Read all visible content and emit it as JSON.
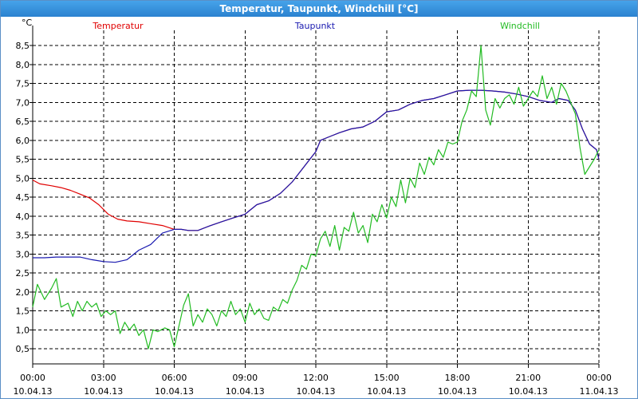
{
  "window": {
    "title": "Temperatur, Taupunkt, Windchill [°C]"
  },
  "chart_data": {
    "type": "line",
    "title": "Temperatur, Taupunkt, Windchill [°C]",
    "ylabel": "°C",
    "ylim": [
      0.1,
      8.9
    ],
    "xlim": [
      0,
      24
    ],
    "grid": true,
    "legend_position": "top",
    "y_ticks": [
      0.5,
      1.0,
      1.5,
      2.0,
      2.5,
      3.0,
      3.5,
      4.0,
      4.5,
      5.0,
      5.5,
      6.0,
      6.5,
      7.0,
      7.5,
      8.0,
      8.5
    ],
    "y_tick_labels": [
      "0,5",
      "1,0",
      "1,5",
      "2,0",
      "2,5",
      "3,0",
      "3,5",
      "4,0",
      "4,5",
      "5,0",
      "5,5",
      "6,0",
      "6,5",
      "7,0",
      "7,5",
      "8,0",
      "8,5"
    ],
    "x_ticks": [
      {
        "x": 0,
        "time": "00:00",
        "date": "10.04.13"
      },
      {
        "x": 3,
        "time": "03:00",
        "date": "10.04.13"
      },
      {
        "x": 6,
        "time": "06:00",
        "date": "10.04.13"
      },
      {
        "x": 9,
        "time": "09:00",
        "date": "10.04.13"
      },
      {
        "x": 12,
        "time": "12:00",
        "date": "10.04.13"
      },
      {
        "x": 15,
        "time": "15:00",
        "date": "10.04.13"
      },
      {
        "x": 18,
        "time": "18:00",
        "date": "10.04.13"
      },
      {
        "x": 21,
        "time": "21:00",
        "date": "10.04.13"
      },
      {
        "x": 24,
        "time": "00:00",
        "date": "11.04.13"
      }
    ],
    "series": [
      {
        "name": "Temperatur",
        "color": "#e00000",
        "points": [
          [
            0,
            4.95
          ],
          [
            0.3,
            4.85
          ],
          [
            0.8,
            4.8
          ],
          [
            1.2,
            4.75
          ],
          [
            1.6,
            4.68
          ],
          [
            2.0,
            4.58
          ],
          [
            2.4,
            4.48
          ],
          [
            2.8,
            4.3
          ],
          [
            3.2,
            4.05
          ],
          [
            3.6,
            3.92
          ],
          [
            4.0,
            3.87
          ],
          [
            4.5,
            3.85
          ],
          [
            5.0,
            3.8
          ],
          [
            5.5,
            3.75
          ],
          [
            6.0,
            3.65
          ],
          [
            6.3,
            3.65
          ],
          [
            6.6,
            3.62
          ],
          [
            7.0,
            3.62
          ],
          [
            7.5,
            3.74
          ],
          [
            8.0,
            3.85
          ],
          [
            8.5,
            3.95
          ],
          [
            9.0,
            4.05
          ],
          [
            9.5,
            4.3
          ],
          [
            10.0,
            4.4
          ],
          [
            10.5,
            4.6
          ],
          [
            11.0,
            4.9
          ],
          [
            11.5,
            5.3
          ],
          [
            12.0,
            5.7
          ],
          [
            12.2,
            6.0
          ],
          [
            12.6,
            6.1
          ],
          [
            13.0,
            6.2
          ],
          [
            13.5,
            6.3
          ],
          [
            14.0,
            6.35
          ],
          [
            14.5,
            6.5
          ],
          [
            15.0,
            6.75
          ],
          [
            15.5,
            6.8
          ],
          [
            16.0,
            6.95
          ],
          [
            16.5,
            7.05
          ],
          [
            17.0,
            7.1
          ],
          [
            17.5,
            7.2
          ],
          [
            18.0,
            7.3
          ],
          [
            18.5,
            7.32
          ],
          [
            19.0,
            7.32
          ],
          [
            19.5,
            7.3
          ],
          [
            20.0,
            7.27
          ],
          [
            20.5,
            7.22
          ],
          [
            21.0,
            7.15
          ],
          [
            21.5,
            7.05
          ],
          [
            22.0,
            7.0
          ],
          [
            22.3,
            7.1
          ],
          [
            22.7,
            7.05
          ],
          [
            23.0,
            6.8
          ],
          [
            23.3,
            6.3
          ],
          [
            23.6,
            5.9
          ],
          [
            23.9,
            5.75
          ],
          [
            24.0,
            5.5
          ]
        ]
      },
      {
        "name": "Taupunkt",
        "color": "#1a1ab0",
        "points": [
          [
            0,
            2.9
          ],
          [
            0.5,
            2.9
          ],
          [
            1.0,
            2.92
          ],
          [
            1.5,
            2.92
          ],
          [
            2.0,
            2.92
          ],
          [
            2.5,
            2.85
          ],
          [
            3.0,
            2.8
          ],
          [
            3.5,
            2.78
          ],
          [
            4.0,
            2.85
          ],
          [
            4.5,
            3.1
          ],
          [
            5.0,
            3.25
          ],
          [
            5.5,
            3.55
          ],
          [
            6.0,
            3.65
          ],
          [
            6.3,
            3.65
          ],
          [
            6.6,
            3.62
          ],
          [
            7.0,
            3.62
          ],
          [
            7.5,
            3.74
          ],
          [
            8.0,
            3.85
          ],
          [
            8.5,
            3.95
          ],
          [
            9.0,
            4.05
          ],
          [
            9.5,
            4.3
          ],
          [
            10.0,
            4.4
          ],
          [
            10.5,
            4.6
          ],
          [
            11.0,
            4.9
          ],
          [
            11.5,
            5.3
          ],
          [
            12.0,
            5.7
          ],
          [
            12.2,
            6.0
          ],
          [
            12.6,
            6.1
          ],
          [
            13.0,
            6.2
          ],
          [
            13.5,
            6.3
          ],
          [
            14.0,
            6.35
          ],
          [
            14.5,
            6.5
          ],
          [
            15.0,
            6.75
          ],
          [
            15.5,
            6.8
          ],
          [
            16.0,
            6.95
          ],
          [
            16.5,
            7.05
          ],
          [
            17.0,
            7.1
          ],
          [
            17.5,
            7.2
          ],
          [
            18.0,
            7.3
          ],
          [
            18.5,
            7.32
          ],
          [
            19.0,
            7.32
          ],
          [
            19.5,
            7.3
          ],
          [
            20.0,
            7.27
          ],
          [
            20.5,
            7.22
          ],
          [
            21.0,
            7.15
          ],
          [
            21.5,
            7.05
          ],
          [
            22.0,
            7.0
          ],
          [
            22.3,
            7.1
          ],
          [
            22.7,
            7.05
          ],
          [
            23.0,
            6.8
          ],
          [
            23.3,
            6.3
          ],
          [
            23.6,
            5.9
          ],
          [
            23.9,
            5.75
          ],
          [
            24.0,
            5.5
          ]
        ]
      },
      {
        "name": "Windchill",
        "color": "#22bb22",
        "points": [
          [
            0,
            1.6
          ],
          [
            0.2,
            2.2
          ],
          [
            0.5,
            1.8
          ],
          [
            0.8,
            2.1
          ],
          [
            1.0,
            2.35
          ],
          [
            1.2,
            1.6
          ],
          [
            1.5,
            1.7
          ],
          [
            1.7,
            1.35
          ],
          [
            1.9,
            1.75
          ],
          [
            2.1,
            1.5
          ],
          [
            2.3,
            1.75
          ],
          [
            2.5,
            1.6
          ],
          [
            2.7,
            1.7
          ],
          [
            2.9,
            1.35
          ],
          [
            3.1,
            1.5
          ],
          [
            3.3,
            1.4
          ],
          [
            3.5,
            1.5
          ],
          [
            3.7,
            0.9
          ],
          [
            3.9,
            1.2
          ],
          [
            4.1,
            1.0
          ],
          [
            4.3,
            1.15
          ],
          [
            4.5,
            0.85
          ],
          [
            4.7,
            1.0
          ],
          [
            4.9,
            0.5
          ],
          [
            5.1,
            1.0
          ],
          [
            5.3,
            0.95
          ],
          [
            5.6,
            1.05
          ],
          [
            5.8,
            1.0
          ],
          [
            6.0,
            0.55
          ],
          [
            6.2,
            1.1
          ],
          [
            6.4,
            1.65
          ],
          [
            6.6,
            1.95
          ],
          [
            6.8,
            1.1
          ],
          [
            7.0,
            1.4
          ],
          [
            7.2,
            1.2
          ],
          [
            7.4,
            1.55
          ],
          [
            7.6,
            1.4
          ],
          [
            7.8,
            1.1
          ],
          [
            8.0,
            1.5
          ],
          [
            8.2,
            1.35
          ],
          [
            8.4,
            1.75
          ],
          [
            8.6,
            1.4
          ],
          [
            8.8,
            1.55
          ],
          [
            9.0,
            1.2
          ],
          [
            9.2,
            1.7
          ],
          [
            9.4,
            1.4
          ],
          [
            9.6,
            1.55
          ],
          [
            9.8,
            1.3
          ],
          [
            10.0,
            1.25
          ],
          [
            10.2,
            1.6
          ],
          [
            10.4,
            1.5
          ],
          [
            10.6,
            1.8
          ],
          [
            10.8,
            1.7
          ],
          [
            11.0,
            2.05
          ],
          [
            11.2,
            2.3
          ],
          [
            11.4,
            2.7
          ],
          [
            11.6,
            2.6
          ],
          [
            11.8,
            3.0
          ],
          [
            12.0,
            2.95
          ],
          [
            12.2,
            3.4
          ],
          [
            12.4,
            3.6
          ],
          [
            12.6,
            3.2
          ],
          [
            12.8,
            3.75
          ],
          [
            13.0,
            3.1
          ],
          [
            13.2,
            3.7
          ],
          [
            13.4,
            3.6
          ],
          [
            13.6,
            4.1
          ],
          [
            13.8,
            3.55
          ],
          [
            14.0,
            3.75
          ],
          [
            14.2,
            3.3
          ],
          [
            14.4,
            4.05
          ],
          [
            14.6,
            3.85
          ],
          [
            14.8,
            4.3
          ],
          [
            15.0,
            3.95
          ],
          [
            15.2,
            4.5
          ],
          [
            15.4,
            4.25
          ],
          [
            15.6,
            4.95
          ],
          [
            15.8,
            4.35
          ],
          [
            16.0,
            5.0
          ],
          [
            16.2,
            4.75
          ],
          [
            16.4,
            5.4
          ],
          [
            16.6,
            5.1
          ],
          [
            16.8,
            5.55
          ],
          [
            17.0,
            5.35
          ],
          [
            17.2,
            5.75
          ],
          [
            17.4,
            5.55
          ],
          [
            17.6,
            5.95
          ],
          [
            17.8,
            5.9
          ],
          [
            18.0,
            5.95
          ],
          [
            18.2,
            6.5
          ],
          [
            18.4,
            6.8
          ],
          [
            18.6,
            7.3
          ],
          [
            18.8,
            7.15
          ],
          [
            19.0,
            8.5
          ],
          [
            19.2,
            6.8
          ],
          [
            19.4,
            6.4
          ],
          [
            19.6,
            7.1
          ],
          [
            19.8,
            6.85
          ],
          [
            20.0,
            7.1
          ],
          [
            20.2,
            7.2
          ],
          [
            20.4,
            6.95
          ],
          [
            20.6,
            7.4
          ],
          [
            20.8,
            6.9
          ],
          [
            21.0,
            7.1
          ],
          [
            21.2,
            7.3
          ],
          [
            21.4,
            7.15
          ],
          [
            21.6,
            7.7
          ],
          [
            21.8,
            7.1
          ],
          [
            22.0,
            7.4
          ],
          [
            22.2,
            6.95
          ],
          [
            22.4,
            7.5
          ],
          [
            22.6,
            7.3
          ],
          [
            22.8,
            7.0
          ],
          [
            23.0,
            6.7
          ],
          [
            23.2,
            5.8
          ],
          [
            23.4,
            5.1
          ],
          [
            23.6,
            5.3
          ],
          [
            23.8,
            5.5
          ],
          [
            24.0,
            5.75
          ]
        ]
      }
    ]
  }
}
